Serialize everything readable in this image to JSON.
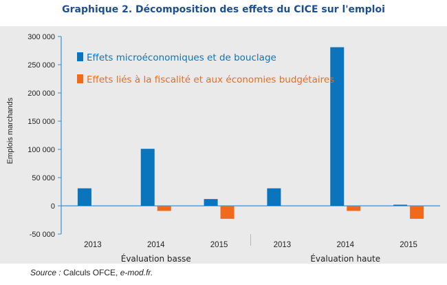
{
  "title": "Graphique 2. Décomposition des effets du CICE sur l'emploi",
  "source": {
    "label": "Source :",
    "text": " Calculs OFCE, ",
    "italic_text": "e-mod.fr."
  },
  "colors": {
    "series1": "#0a74bd",
    "series2": "#f06a1c",
    "axis": "#3a8fd0",
    "panel": "#eaeaea"
  },
  "chart_data": {
    "type": "bar",
    "ylabel": "Emplois marchands",
    "ylim": [
      -50000,
      300000
    ],
    "yticks": [
      -50000,
      0,
      50000,
      100000,
      150000,
      200000,
      250000,
      300000
    ],
    "ytick_labels": [
      "-50 000",
      "0",
      "50 000",
      "100 000",
      "150 000",
      "200 000",
      "250 000",
      "300 000"
    ],
    "categories": [
      "2013",
      "2014",
      "2015",
      "2013",
      "2014",
      "2015"
    ],
    "groups": [
      "Évaluation basse",
      "Évaluation haute"
    ],
    "grid": false,
    "legend_position": "top-left",
    "series": [
      {
        "name": "Effets microéconomiques et de bouclage",
        "values": [
          31000,
          101000,
          12000,
          31000,
          281000,
          2000
        ]
      },
      {
        "name": "Effets liés à la fiscalité et aux économies budgétaires",
        "values": [
          0,
          -9000,
          -23000,
          0,
          -9000,
          -23000
        ]
      }
    ]
  }
}
